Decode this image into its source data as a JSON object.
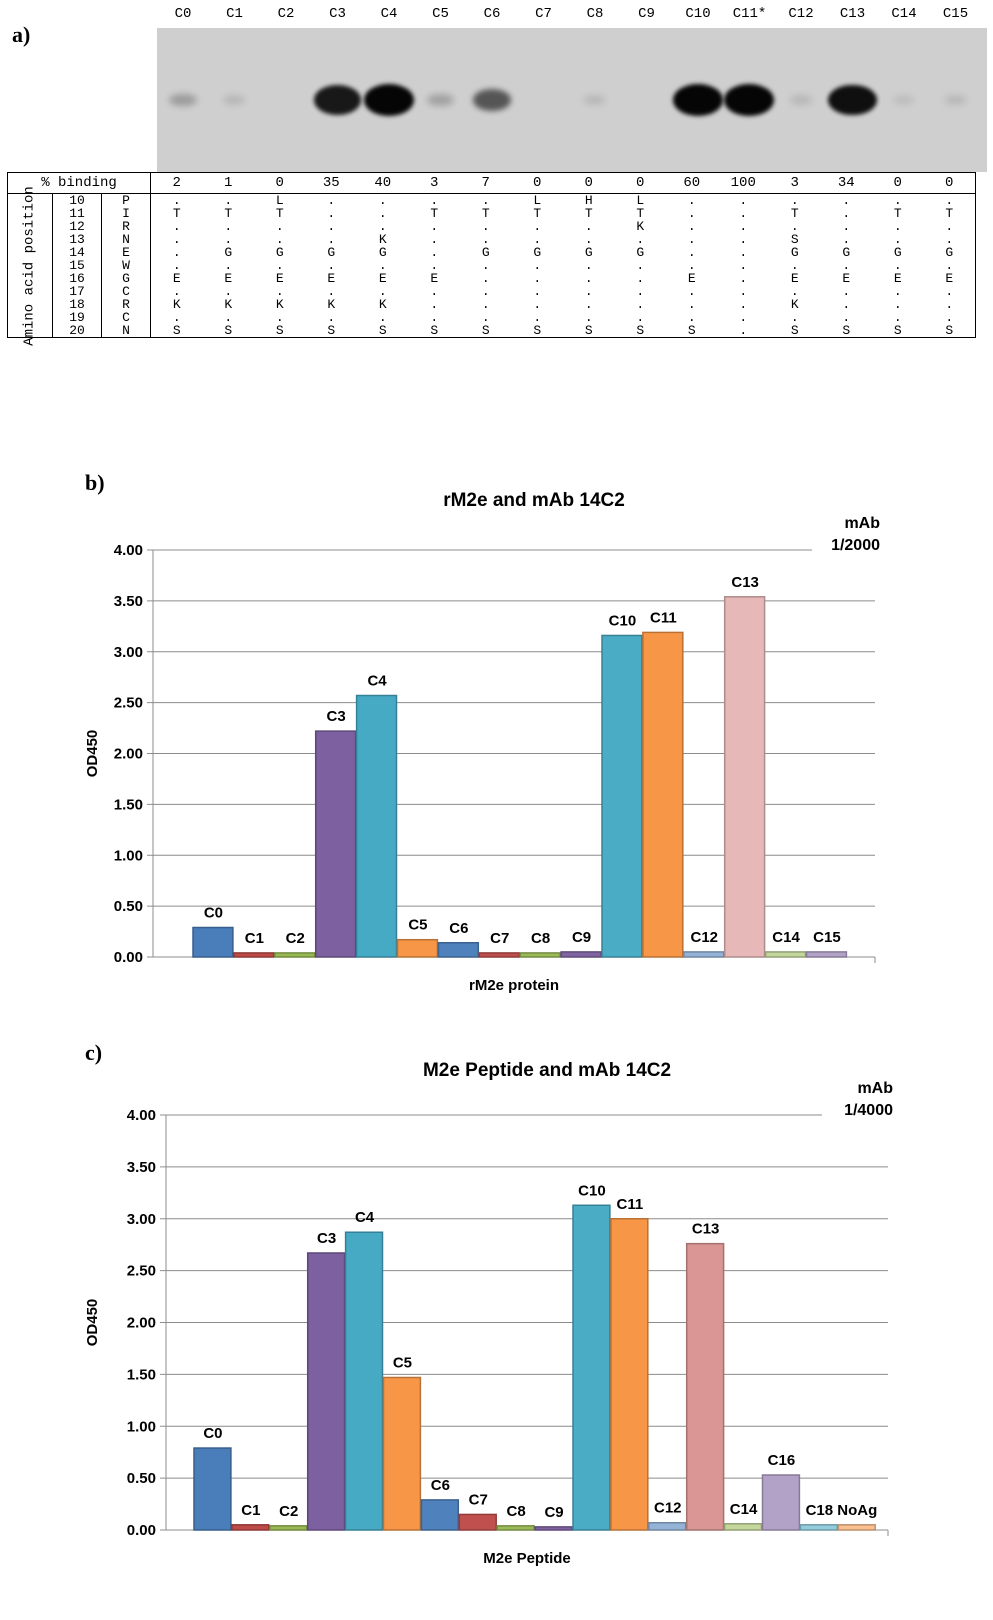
{
  "panel_a": {
    "letter": "a)",
    "columns": [
      "C0",
      "C1",
      "C2",
      "C3",
      "C4",
      "C5",
      "C6",
      "C7",
      "C8",
      "C9",
      "C10",
      "C11*",
      "C12",
      "C13",
      "C14",
      "C15"
    ],
    "binding_label": "% binding",
    "binding": [
      "2",
      "1",
      "0",
      "35",
      "40",
      "3",
      "7",
      "0",
      "0",
      "0",
      "60",
      "100",
      "3",
      "34",
      "0",
      "0"
    ],
    "side_label": "Amino acid position",
    "rows": [
      {
        "pos": "10",
        "res": "P",
        "cells": [
          ".",
          ".",
          "L",
          ".",
          ".",
          ".",
          ".",
          "L",
          "H",
          "L",
          ".",
          ".",
          ".",
          ".",
          ".",
          "."
        ]
      },
      {
        "pos": "11",
        "res": "I",
        "cells": [
          "T",
          "T",
          "T",
          ".",
          ".",
          "T",
          "T",
          "T",
          "T",
          "T",
          ".",
          ".",
          "T",
          ".",
          "T",
          "T"
        ]
      },
      {
        "pos": "12",
        "res": "R",
        "cells": [
          ".",
          ".",
          ".",
          ".",
          ".",
          ".",
          ".",
          ".",
          ".",
          "K",
          ".",
          ".",
          ".",
          ".",
          ".",
          "."
        ]
      },
      {
        "pos": "13",
        "res": "N",
        "cells": [
          ".",
          ".",
          ".",
          ".",
          "K",
          ".",
          ".",
          ".",
          ".",
          ".",
          ".",
          ".",
          "S",
          ".",
          ".",
          "."
        ]
      },
      {
        "pos": "14",
        "res": "E",
        "cells": [
          ".",
          "G",
          "G",
          "G",
          "G",
          ".",
          "G",
          "G",
          "G",
          "G",
          ".",
          ".",
          "G",
          "G",
          "G",
          "G"
        ]
      },
      {
        "pos": "15",
        "res": "W",
        "cells": [
          ".",
          ".",
          ".",
          ".",
          ".",
          ".",
          ".",
          ".",
          ".",
          ".",
          ".",
          ".",
          ".",
          ".",
          ".",
          "."
        ]
      },
      {
        "pos": "16",
        "res": "G",
        "cells": [
          "E",
          "E",
          "E",
          "E",
          "E",
          "E",
          ".",
          ".",
          ".",
          ".",
          "E",
          ".",
          "E",
          "E",
          "E",
          "E"
        ]
      },
      {
        "pos": "17",
        "res": "C",
        "cells": [
          ".",
          ".",
          ".",
          ".",
          ".",
          ".",
          ".",
          ".",
          ".",
          ".",
          ".",
          ".",
          ".",
          ".",
          ".",
          "."
        ]
      },
      {
        "pos": "18",
        "res": "R",
        "cells": [
          "K",
          "K",
          "K",
          "K",
          "K",
          ".",
          ".",
          ".",
          ".",
          ".",
          ".",
          ".",
          "K",
          ".",
          ".",
          "."
        ]
      },
      {
        "pos": "19",
        "res": "C",
        "cells": [
          ".",
          ".",
          ".",
          ".",
          ".",
          ".",
          ".",
          ".",
          ".",
          ".",
          ".",
          ".",
          ".",
          ".",
          ".",
          "."
        ]
      },
      {
        "pos": "20",
        "res": "N",
        "cells": [
          "S",
          "S",
          "S",
          "S",
          "S",
          "S",
          "S",
          "S",
          "S",
          "S",
          "S",
          ".",
          "S",
          "S",
          "S",
          "S"
        ]
      }
    ],
    "band_intensity": [
      0.25,
      0.08,
      0.0,
      0.9,
      1.0,
      0.22,
      0.6,
      0.0,
      0.04,
      0.0,
      1.0,
      1.0,
      0.06,
      0.95,
      0.03,
      0.04
    ]
  },
  "chart_data": [
    {
      "type": "bar",
      "panel": "b)",
      "title": "rM2e and mAb 14C2",
      "xlabel": "rM2e protein",
      "ylabel": "OD450",
      "annotation": [
        "mAb",
        "1/2000"
      ],
      "ylim": [
        0,
        4
      ],
      "yticks": [
        "0.00",
        "0.50",
        "1.00",
        "1.50",
        "2.00",
        "2.50",
        "3.00",
        "3.50",
        "4.00"
      ],
      "grid": true,
      "categories": [
        "C0",
        "C1",
        "C2",
        "C3",
        "C4",
        "C5",
        "C6",
        "C7",
        "C8",
        "C9",
        "C10",
        "C11",
        "C12",
        "C13",
        "C14",
        "C15"
      ],
      "values": [
        0.29,
        0.04,
        0.04,
        2.22,
        2.57,
        0.17,
        0.14,
        0.04,
        0.04,
        0.05,
        3.16,
        3.19,
        0.05,
        3.54,
        0.05,
        0.05
      ],
      "labels": [
        "C0",
        "C1",
        "C2",
        "C3",
        "C4",
        "C5",
        "C6",
        "C7",
        "C8",
        "C9",
        "C10",
        "C11",
        "C12",
        "C13",
        "C14",
        "C15"
      ],
      "colors": [
        "#4a7ebb",
        "#be4b48",
        "#98b954",
        "#7d60a0",
        "#46aac5",
        "#f79646",
        "#4f81bd",
        "#c0504d",
        "#9bbb59",
        "#8064a2",
        "#4bacc6",
        "#f79646",
        "#95b3d7",
        "#e6b9b8",
        "#c3d69b",
        "#b3a2c7"
      ]
    },
    {
      "type": "bar",
      "panel": "c)",
      "title": "M2e Peptide and mAb 14C2",
      "xlabel": "M2e Peptide",
      "ylabel": "OD450",
      "annotation": [
        "mAb",
        "1/4000"
      ],
      "ylim": [
        0,
        4
      ],
      "yticks": [
        "0.00",
        "0.50",
        "1.00",
        "1.50",
        "2.00",
        "2.50",
        "3.00",
        "3.50",
        "4.00"
      ],
      "grid": true,
      "categories": [
        "C0",
        "C1",
        "C2",
        "C3",
        "C4",
        "C5",
        "C6",
        "C7",
        "C8",
        "C9",
        "C10",
        "C11",
        "C12",
        "C13",
        "C14",
        "C16",
        "C18",
        "NoAg"
      ],
      "values": [
        0.79,
        0.05,
        0.04,
        2.67,
        2.87,
        1.47,
        0.29,
        0.15,
        0.04,
        0.03,
        3.13,
        3.0,
        0.07,
        2.76,
        0.06,
        0.53,
        0.05,
        0.05
      ],
      "labels": [
        "C0",
        "C1",
        "C2",
        "C3",
        "C4",
        "C5",
        "C6",
        "C7",
        "C8",
        "C9",
        "C10",
        "C11",
        "C12",
        "C13",
        "C14",
        "C16",
        "C18",
        "NoAg"
      ],
      "colors": [
        "#4a7ebb",
        "#be4b48",
        "#98b954",
        "#7d60a0",
        "#46aac5",
        "#f79646",
        "#4f81bd",
        "#c0504d",
        "#9bbb59",
        "#8064a2",
        "#4bacc6",
        "#f79646",
        "#95b3d7",
        "#d99694",
        "#c3d69b",
        "#b3a2c7",
        "#93cddd",
        "#fac090"
      ]
    }
  ]
}
